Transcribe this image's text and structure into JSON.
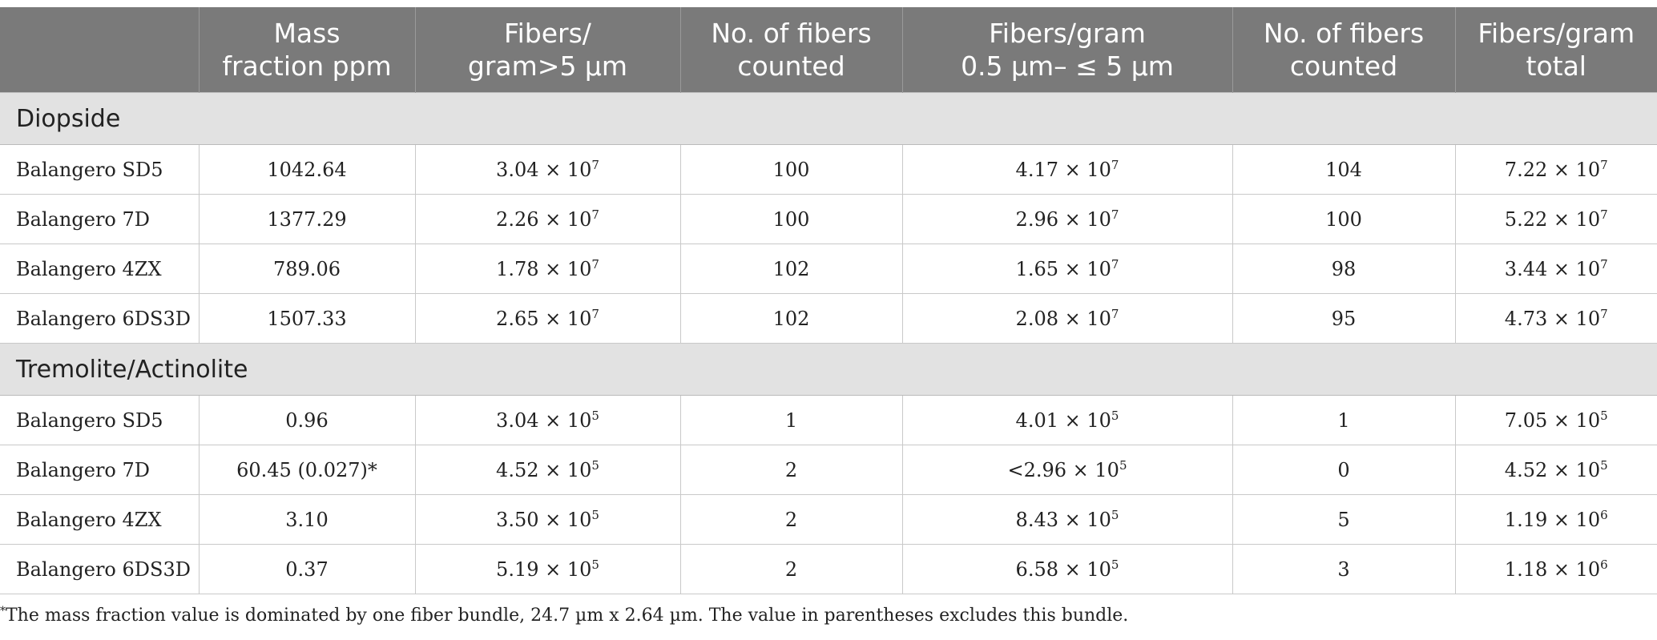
{
  "headers": [
    {
      "lines": [
        ""
      ]
    },
    {
      "lines": [
        "Mass",
        "fraction ppm"
      ]
    },
    {
      "lines": [
        "Fibers/",
        "gram>5 µm"
      ]
    },
    {
      "lines": [
        "No. of fibers",
        "counted"
      ]
    },
    {
      "lines": [
        "Fibers/gram",
        "0.5 µm– ≤ 5 µm"
      ]
    },
    {
      "lines": [
        "No. of fibers",
        "counted"
      ]
    },
    {
      "lines": [
        "Fibers/gram",
        "total"
      ]
    }
  ],
  "sections": [
    {
      "label": "Diopside",
      "rows": [
        {
          "cells": [
            {
              "t": "Balangero SD5"
            },
            {
              "t": "1042.64"
            },
            {
              "m": "3.04 × 10",
              "e": "7"
            },
            {
              "t": "100"
            },
            {
              "m": "4.17 × 10",
              "e": "7"
            },
            {
              "t": "104"
            },
            {
              "m": "7.22 × 10",
              "e": "7"
            }
          ]
        },
        {
          "cells": [
            {
              "t": "Balangero 7D"
            },
            {
              "t": "1377.29"
            },
            {
              "m": "2.26 × 10",
              "e": "7"
            },
            {
              "t": "100"
            },
            {
              "m": "2.96 × 10",
              "e": "7"
            },
            {
              "t": "100"
            },
            {
              "m": "5.22 × 10",
              "e": "7"
            }
          ]
        },
        {
          "cells": [
            {
              "t": "Balangero 4ZX"
            },
            {
              "t": "789.06"
            },
            {
              "m": "1.78 × 10",
              "e": "7"
            },
            {
              "t": "102"
            },
            {
              "m": "1.65 × 10",
              "e": "7"
            },
            {
              "t": "98"
            },
            {
              "m": "3.44 × 10",
              "e": "7"
            }
          ]
        },
        {
          "cells": [
            {
              "t": "Balangero 6DS3D"
            },
            {
              "t": "1507.33"
            },
            {
              "m": "2.65 × 10",
              "e": "7"
            },
            {
              "t": "102"
            },
            {
              "m": "2.08 × 10",
              "e": "7"
            },
            {
              "t": "95"
            },
            {
              "m": "4.73 × 10",
              "e": "7"
            }
          ]
        }
      ]
    },
    {
      "label": "Tremolite/Actinolite",
      "rows": [
        {
          "cells": [
            {
              "t": "Balangero SD5"
            },
            {
              "t": "0.96"
            },
            {
              "m": "3.04 × 10",
              "e": "5"
            },
            {
              "t": "1"
            },
            {
              "m": "4.01 × 10",
              "e": "5"
            },
            {
              "t": "1"
            },
            {
              "m": "7.05 × 10",
              "e": "5"
            }
          ]
        },
        {
          "cells": [
            {
              "t": "Balangero 7D"
            },
            {
              "t": "60.45 (0.027)*"
            },
            {
              "m": "4.52 × 10",
              "e": "5"
            },
            {
              "t": "2"
            },
            {
              "m": "<2.96 × 10",
              "e": "5"
            },
            {
              "t": "0"
            },
            {
              "m": "4.52 × 10",
              "e": "5"
            }
          ]
        },
        {
          "cells": [
            {
              "t": "Balangero 4ZX"
            },
            {
              "t": "3.10"
            },
            {
              "m": "3.50 × 10",
              "e": "5"
            },
            {
              "t": "2"
            },
            {
              "m": "8.43 × 10",
              "e": "5"
            },
            {
              "t": "5"
            },
            {
              "m": "1.19 × 10",
              "e": "6"
            }
          ]
        },
        {
          "cells": [
            {
              "t": "Balangero 6DS3D"
            },
            {
              "t": "0.37"
            },
            {
              "m": "5.19 × 10",
              "e": "5"
            },
            {
              "t": "2"
            },
            {
              "m": "6.58 × 10",
              "e": "5"
            },
            {
              "t": "3"
            },
            {
              "m": "1.18 × 10",
              "e": "6"
            }
          ]
        }
      ]
    }
  ],
  "footnote": {
    "marker": "*",
    "text": "The mass fraction value is dominated by one fiber bundle, 24.7 µm x 2.64 µm. The value in parentheses excludes this bundle."
  }
}
